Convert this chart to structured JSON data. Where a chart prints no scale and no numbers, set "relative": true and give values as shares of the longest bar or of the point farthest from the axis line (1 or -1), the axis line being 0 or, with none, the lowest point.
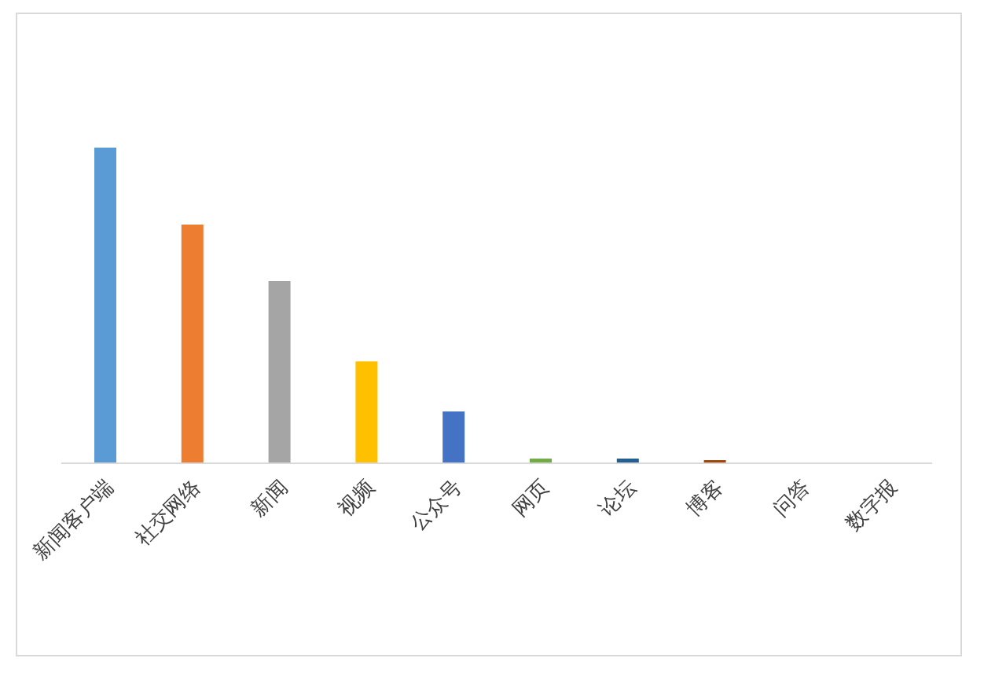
{
  "chart_data": {
    "type": "bar",
    "relative": true,
    "categories": [
      "新闻客户端",
      "社交网络",
      "新闻",
      "视频",
      "公众号",
      "网页",
      "论坛",
      "博客",
      "问答",
      "数字报"
    ],
    "values": [
      1,
      0.756,
      0.577,
      0.323,
      0.164,
      0.015,
      0.015,
      0.01,
      0,
      0
    ],
    "colors": [
      "#5b9bd5",
      "#ed7d31",
      "#a5a5a5",
      "#ffc000",
      "#4472c4",
      "#70ad47",
      "#255e91",
      "#9e480e",
      "#636363",
      "#997300"
    ],
    "grid": false,
    "legend": false
  }
}
